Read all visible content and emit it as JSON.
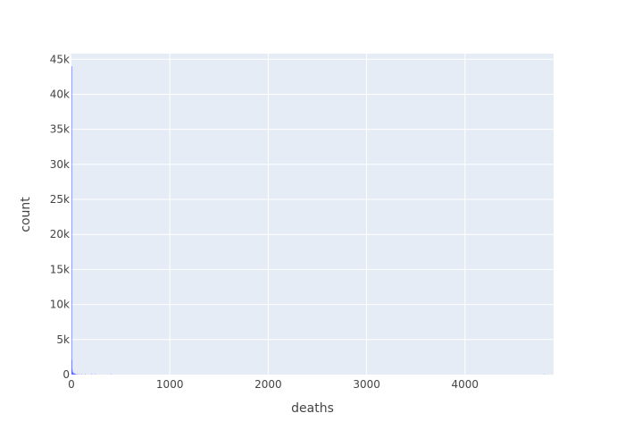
{
  "chart_data": {
    "type": "bar",
    "subtype": "histogram",
    "title": "",
    "xlabel": "deaths",
    "ylabel": "count",
    "xlim": [
      0,
      4900
    ],
    "ylim": [
      0,
      45800
    ],
    "grid": true,
    "x_ticks": [
      {
        "value": 0,
        "label": "0"
      },
      {
        "value": 1000,
        "label": "1000"
      },
      {
        "value": 2000,
        "label": "2000"
      },
      {
        "value": 3000,
        "label": "3000"
      },
      {
        "value": 4000,
        "label": "4000"
      }
    ],
    "y_ticks": [
      {
        "value": 0,
        "label": "0"
      },
      {
        "value": 5000,
        "label": "5k"
      },
      {
        "value": 10000,
        "label": "10k"
      },
      {
        "value": 15000,
        "label": "15k"
      },
      {
        "value": 20000,
        "label": "20k"
      },
      {
        "value": 25000,
        "label": "25k"
      },
      {
        "value": 30000,
        "label": "30k"
      },
      {
        "value": 35000,
        "label": "35k"
      },
      {
        "value": 40000,
        "label": "40k"
      },
      {
        "value": 45000,
        "label": "45k"
      }
    ],
    "bin_width": 2,
    "bins": [
      {
        "x0": 0,
        "count": 44000
      },
      {
        "x0": 2,
        "count": 2100
      },
      {
        "x0": 4,
        "count": 900
      },
      {
        "x0": 6,
        "count": 600
      },
      {
        "x0": 8,
        "count": 450
      },
      {
        "x0": 10,
        "count": 380
      },
      {
        "x0": 12,
        "count": 320
      },
      {
        "x0": 14,
        "count": 270
      },
      {
        "x0": 16,
        "count": 240
      },
      {
        "x0": 18,
        "count": 210
      },
      {
        "x0": 20,
        "count": 190
      },
      {
        "x0": 22,
        "count": 170
      },
      {
        "x0": 24,
        "count": 160
      },
      {
        "x0": 26,
        "count": 150
      },
      {
        "x0": 28,
        "count": 140
      },
      {
        "x0": 30,
        "count": 130
      },
      {
        "x0": 34,
        "count": 120
      },
      {
        "x0": 40,
        "count": 100
      },
      {
        "x0": 50,
        "count": 80
      },
      {
        "x0": 60,
        "count": 60
      },
      {
        "x0": 80,
        "count": 40
      },
      {
        "x0": 100,
        "count": 30
      },
      {
        "x0": 140,
        "count": 20
      },
      {
        "x0": 200,
        "count": 80
      },
      {
        "x0": 240,
        "count": 10
      },
      {
        "x0": 400,
        "count": 5
      },
      {
        "x0": 4800,
        "count": 2
      }
    ],
    "colors": {
      "bar": "#636efa",
      "plot_background": "#e5ecf6",
      "gridline": "#ffffff",
      "text": "#444444"
    }
  }
}
